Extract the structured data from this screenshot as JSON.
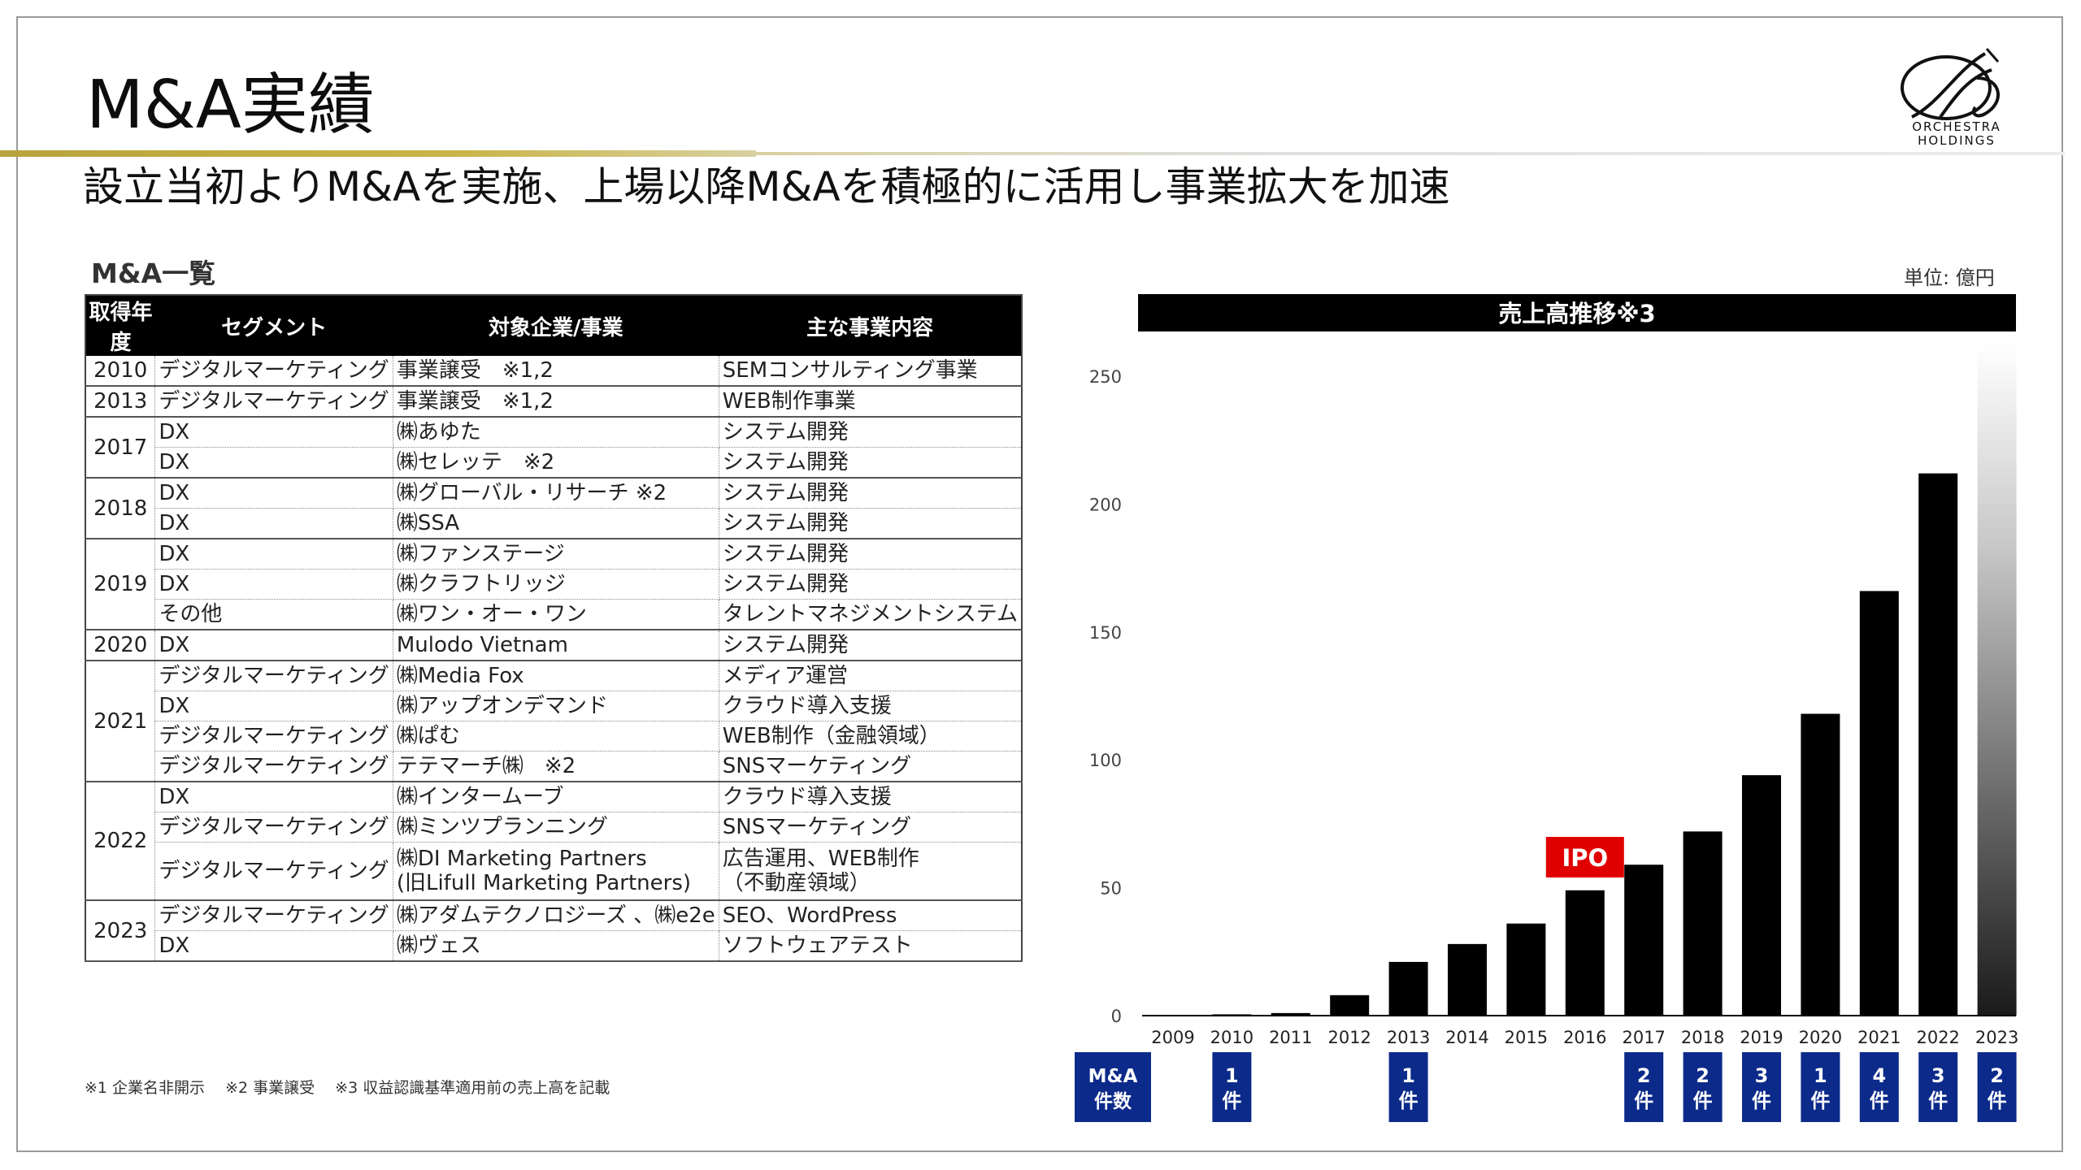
{
  "title": "M&A実績",
  "subtitle": "設立当初よりM&Aを実施、上場以降M&Aを積極的に活用し事業拡大を加速",
  "logo": {
    "line1": "ORCHESTRA",
    "line2": "HOLDINGS"
  },
  "ma_list": {
    "heading": "M&A一覧",
    "headers": [
      "取得年度",
      "セグメント",
      "対象企業/事業",
      "主な事業内容"
    ],
    "groups": [
      {
        "year": "2010",
        "rows": [
          {
            "segment": "デジタルマーケティング",
            "target": "事業譲受　※1,2",
            "content": "SEMコンサルティング事業"
          }
        ]
      },
      {
        "year": "2013",
        "rows": [
          {
            "segment": "デジタルマーケティング",
            "target": "事業譲受　※1,2",
            "content": "WEB制作事業"
          }
        ]
      },
      {
        "year": "2017",
        "rows": [
          {
            "segment": "DX",
            "target": "㈱あゆた",
            "content": "システム開発"
          },
          {
            "segment": "DX",
            "target": "㈱セレッテ　※2",
            "content": "システム開発"
          }
        ]
      },
      {
        "year": "2018",
        "rows": [
          {
            "segment": "DX",
            "target": "㈱グローバル・リサーチ ※2",
            "content": "システム開発"
          },
          {
            "segment": "DX",
            "target": "㈱SSA",
            "content": "システム開発"
          }
        ]
      },
      {
        "year": "2019",
        "rows": [
          {
            "segment": "DX",
            "target": "㈱ファンステージ",
            "content": "システム開発"
          },
          {
            "segment": "DX",
            "target": "㈱クラフトリッジ",
            "content": "システム開発"
          },
          {
            "segment": "その他",
            "target": "㈱ワン・オー・ワン",
            "content": "タレントマネジメントシステム"
          }
        ]
      },
      {
        "year": "2020",
        "rows": [
          {
            "segment": "DX",
            "target": "Mulodo Vietnam",
            "content": "システム開発"
          }
        ]
      },
      {
        "year": "2021",
        "rows": [
          {
            "segment": "デジタルマーケティング",
            "target": "㈱Media Fox",
            "content": "メディア運営"
          },
          {
            "segment": "DX",
            "target": "㈱アップオンデマンド",
            "content": "クラウド導入支援"
          },
          {
            "segment": "デジタルマーケティング",
            "target": "㈱ぱむ",
            "content": "WEB制作（金融領域）"
          },
          {
            "segment": "デジタルマーケティング",
            "target": "テテマーチ㈱　※2",
            "content": "SNSマーケティング"
          }
        ]
      },
      {
        "year": "2022",
        "rows": [
          {
            "segment": "DX",
            "target": "㈱インタームーブ",
            "content": "クラウド導入支援"
          },
          {
            "segment": "デジタルマーケティング",
            "target": "㈱ミンツプランニング",
            "content": "SNSマーケティング"
          },
          {
            "segment": "デジタルマーケティング",
            "target": "㈱DI Marketing Partners",
            "target2": "(旧Lifull Marketing Partners)",
            "content": "広告運用、WEB制作",
            "content2": "（不動産領域）"
          }
        ]
      },
      {
        "year": "2023",
        "rows": [
          {
            "segment": "デジタルマーケティング",
            "target": "㈱アダムテクノロジーズ 、㈱e2e",
            "content": "SEO、WordPress"
          },
          {
            "segment": "DX",
            "target": "㈱ヴェス",
            "content": "ソフトウェアテスト"
          }
        ]
      }
    ]
  },
  "footnote": "※1  企業名非開示　 ※2  事業譲受　 ※3  収益認識基準適用前の売上高を記載",
  "unit_label": "単位: 億円",
  "ipo_label": "IPO",
  "ma_count_label": [
    "M&A",
    "件数"
  ],
  "ma_count_unit": "件",
  "colors": {
    "bar": "#000000",
    "ipo": "#e10000",
    "count_box": "#0c2a8a",
    "header": "#000000",
    "gold": "#c4ae3f"
  },
  "chart_data": {
    "type": "bar",
    "title": "売上高推移※3",
    "xlabel": "",
    "ylabel": "",
    "ylim": [
      0,
      250
    ],
    "yticks": [
      "0",
      "50",
      "100",
      "150",
      "200",
      "250"
    ],
    "categories": [
      "2009",
      "2010",
      "2011",
      "2012",
      "2013",
      "2014",
      "2015",
      "2016",
      "2017",
      "2018",
      "2019",
      "2020",
      "2021",
      "2022",
      "2023"
    ],
    "values": [
      0.3,
      0.5,
      1,
      8,
      21,
      28,
      36,
      49,
      59,
      72,
      94,
      118,
      166,
      212,
      null
    ],
    "forecast_category": "2023",
    "ipo_year": "2016",
    "ma_counts": [
      null,
      "1",
      null,
      null,
      "1",
      null,
      null,
      null,
      "2",
      "2",
      "3",
      "1",
      "4",
      "3",
      "2"
    ],
    "grid": false,
    "legend": "none"
  }
}
